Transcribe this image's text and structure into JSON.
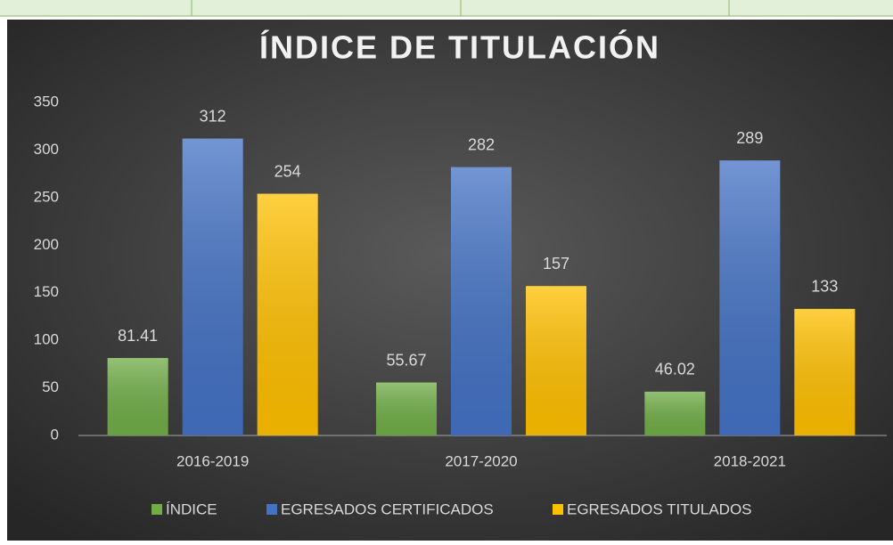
{
  "chart_data": {
    "type": "bar",
    "title": "ÍNDICE DE TITULACIÓN",
    "categories": [
      "2016-2019",
      "2017-2020",
      "2018-2021"
    ],
    "series": [
      {
        "name": "ÍNDICE",
        "color": "#70ad47",
        "values": [
          81.41,
          55.67,
          46.02
        ]
      },
      {
        "name": "EGRESADOS CERTIFICADOS",
        "color": "#4472c4",
        "values": [
          312,
          282,
          289
        ]
      },
      {
        "name": "EGRESADOS TITULADOS",
        "color": "#ffc000",
        "values": [
          254,
          157,
          133
        ]
      }
    ],
    "ylim": [
      0,
      350
    ],
    "yticks": [
      0,
      50,
      100,
      150,
      200,
      250,
      300,
      350
    ],
    "grid": false,
    "legend": "bottom"
  }
}
